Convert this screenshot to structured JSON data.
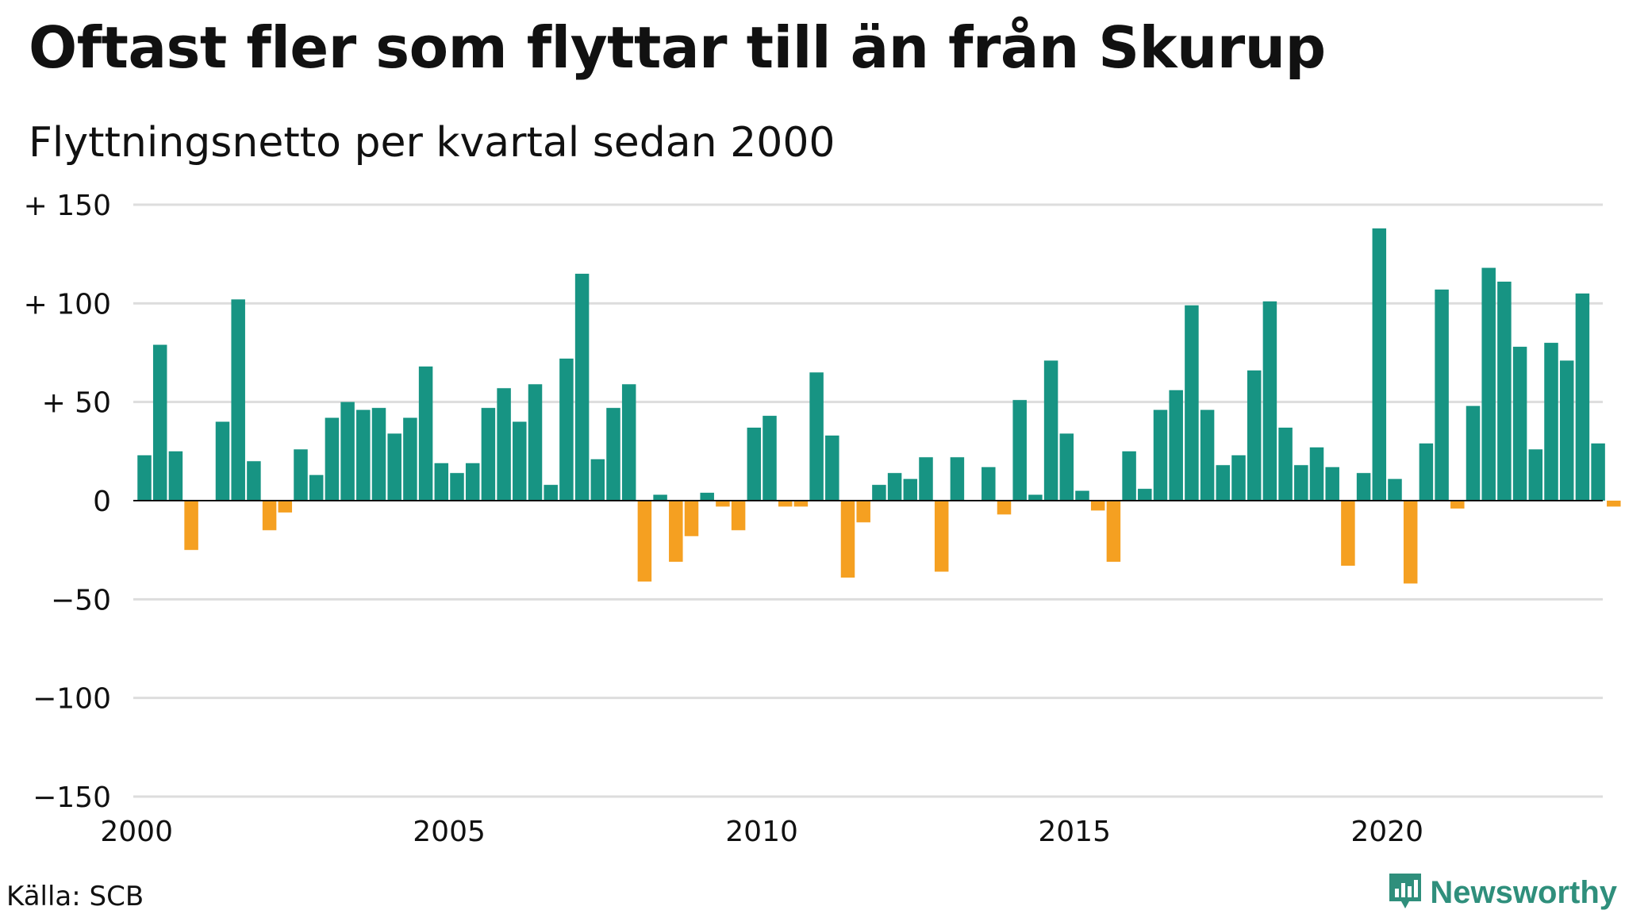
{
  "header": {
    "title": "Oftast fler som flyttar till än från Skurup",
    "subtitle": "Flyttningsnetto per kvartal sedan 2000"
  },
  "footer": {
    "source": "Källa: SCB",
    "brand": "Newsworthy",
    "brand_icon": "newsworthy-logo-icon"
  },
  "colors": {
    "positive": "#179483",
    "negative": "#f5a021",
    "grid": "#dddddd",
    "axis": "#111111",
    "brand": "#2f8f7c"
  },
  "chart_data": {
    "type": "bar",
    "title": "Oftast fler som flyttar till än från Skurup",
    "subtitle": "Flyttningsnetto per kvartal sedan 2000",
    "xlabel": "",
    "ylabel": "",
    "ylim": [
      -150,
      150
    ],
    "yticks": [
      {
        "value": 150,
        "label": "+ 150"
      },
      {
        "value": 100,
        "label": "+ 100"
      },
      {
        "value": 50,
        "label": "+  50"
      },
      {
        "value": 0,
        "label": "0"
      },
      {
        "value": -50,
        "label": "−50"
      },
      {
        "value": -100,
        "label": "−100"
      },
      {
        "value": -150,
        "label": "−150"
      }
    ],
    "xticks": [
      {
        "year": 2000,
        "label": "2000"
      },
      {
        "year": 2005,
        "label": "2005"
      },
      {
        "year": 2010,
        "label": "2010"
      },
      {
        "year": 2015,
        "label": "2015"
      },
      {
        "year": 2020,
        "label": "2020"
      }
    ],
    "x_start": "2000 Q1",
    "period": "quarter",
    "grid": true,
    "values": [
      23,
      79,
      25,
      -25,
      0,
      40,
      102,
      20,
      -15,
      -6,
      26,
      13,
      42,
      50,
      46,
      47,
      34,
      42,
      68,
      19,
      14,
      19,
      47,
      57,
      40,
      59,
      8,
      72,
      115,
      21,
      47,
      59,
      -41,
      3,
      -31,
      -18,
      4,
      -3,
      -15,
      37,
      43,
      -3,
      -3,
      65,
      33,
      -39,
      -11,
      8,
      14,
      11,
      22,
      -36,
      22,
      0,
      17,
      -7,
      51,
      3,
      71,
      34,
      5,
      -5,
      -31,
      25,
      6,
      46,
      56,
      99,
      46,
      18,
      23,
      66,
      101,
      37,
      18,
      27,
      17,
      -33,
      14,
      138,
      11,
      -42,
      29,
      107,
      -4,
      48,
      118,
      111,
      78,
      26,
      80,
      71,
      105,
      29,
      -3
    ]
  }
}
